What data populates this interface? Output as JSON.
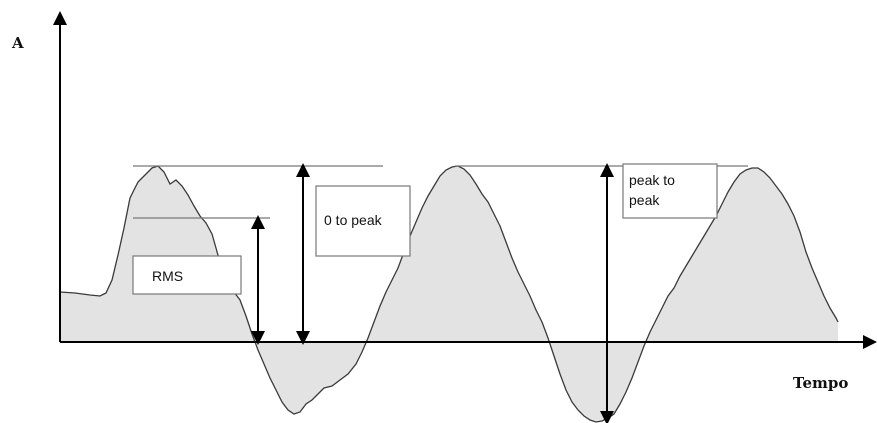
{
  "diagram": {
    "y_axis_label": "A",
    "x_axis_label": "Tempo",
    "labels": {
      "rms": "RMS",
      "zero_to_peak": "0 to peak",
      "peak_to_peak_line1": "peak to",
      "peak_to_peak_line2": "peak"
    },
    "colors": {
      "waveform_fill": "#e3e3e3",
      "waveform_stroke": "#3a3a3a",
      "axis": "#000000",
      "reference_lines": "#777777"
    }
  }
}
